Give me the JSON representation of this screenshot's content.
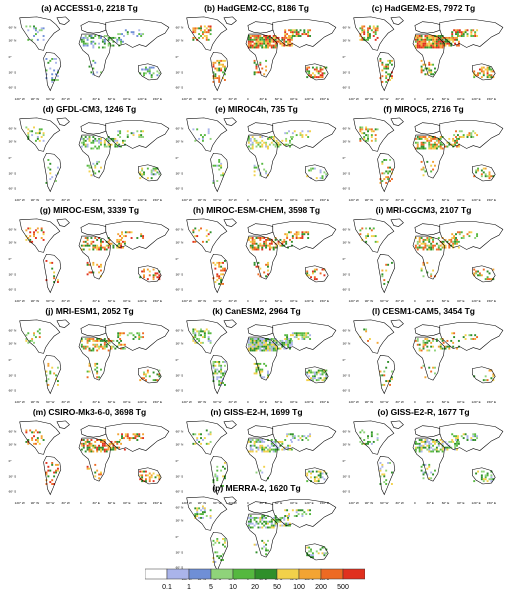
{
  "panels": [
    {
      "title": "(a) ACCESS1-0, 2218 Tg",
      "palette": "blue",
      "density": 0.45
    },
    {
      "title": "(b) HadGEM2-CC, 8186 Tg",
      "palette": "full",
      "density": 0.95
    },
    {
      "title": "(c) HadGEM2-ES, 7972 Tg",
      "palette": "full",
      "density": 0.95
    },
    {
      "title": "(d) GFDL-CM3, 1246 Tg",
      "palette": "green",
      "density": 0.55
    },
    {
      "title": "(e) MIROC4h, 735 Tg",
      "palette": "light",
      "density": 0.4
    },
    {
      "title": "(f) MIROC5, 2716 Tg",
      "palette": "mid",
      "density": 0.6
    },
    {
      "title": "(g) MIROC-ESM, 3339 Tg",
      "palette": "hot",
      "density": 0.55
    },
    {
      "title": "(h) MIROC-ESM-CHEM, 3598 Tg",
      "palette": "hot",
      "density": 0.55
    },
    {
      "title": "(i) MRI-CGCM3, 2107 Tg",
      "palette": "mid",
      "density": 0.5
    },
    {
      "title": "(j) MRI-ESM1, 2052 Tg",
      "palette": "mid",
      "density": 0.5
    },
    {
      "title": "(k) CanESM2, 2964 Tg",
      "palette": "green",
      "density": 0.95
    },
    {
      "title": "(l) CESM1-CAM5, 3454 Tg",
      "palette": "scatter",
      "density": 0.35
    },
    {
      "title": "(m) CSIRO-Mk3-6-0, 3698 Tg",
      "palette": "hot",
      "density": 0.6
    },
    {
      "title": "(n) GISS-E2-H, 1699 Tg",
      "palette": "green",
      "density": 0.6
    },
    {
      "title": "(o) GISS-E2-R, 1677 Tg",
      "palette": "green",
      "density": 0.6
    },
    {
      "title": "(p) MERRA-2, 1620 Tg",
      "palette": "green",
      "density": 0.6
    }
  ],
  "lat_labels": [
    "60° N",
    "30° N",
    "0°",
    "30° S",
    "60° S"
  ],
  "lon_labels": [
    "120° W",
    "90° W",
    "60° W",
    "30° W",
    "0",
    "30° E",
    "60° E",
    "90° E",
    "120° E",
    "150° E"
  ],
  "colorbar": {
    "labels": [
      "0.1",
      "1",
      "5",
      "10",
      "20",
      "50",
      "100",
      "200",
      "500"
    ],
    "colors": [
      "#ffffff",
      "#aab4ea",
      "#6f8fd6",
      "#8fd37a",
      "#55b83f",
      "#2f8f2a",
      "#f2d14a",
      "#f3a433",
      "#ed6a23",
      "#e0301e"
    ]
  }
}
